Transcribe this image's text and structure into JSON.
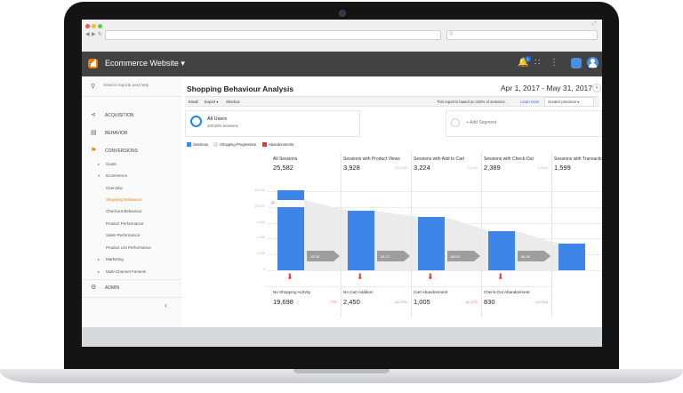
{
  "browser": {
    "url": "",
    "search": ""
  },
  "header": {
    "app_title": "Ecommerce Website",
    "notification_count": "1"
  },
  "sidebar": {
    "search_placeholder": "Search reports and help",
    "items": [
      {
        "label": "ACQUISITION"
      },
      {
        "label": "BEHAVIOR"
      },
      {
        "label": "CONVERSIONS"
      }
    ],
    "conversions_sub": {
      "goals": "Goals",
      "ecommerce": "Ecommerce",
      "ecom_items": [
        "Overview",
        "Shopping Behaviour",
        "Checkout Behaviour",
        "Product Performance",
        "Sales Performance",
        "Product List Performance"
      ],
      "marketing": "Marketing",
      "mcf": "Multi-Channel Funnels"
    },
    "admin": "ADMIN",
    "collapse_icon": "chevron-left-icon"
  },
  "report": {
    "title": "Shopping Behaviour Analysis",
    "date_range": "Apr 1, 2017 - May 31, 2017",
    "toolbar": {
      "email": "Email",
      "export": "Export",
      "shortcut": "Shortcut"
    },
    "sample_note": "This report is based on 100% of sessions.",
    "learn_more": "Learn more",
    "precision": "Greater precision",
    "segment": {
      "name": "All Users",
      "sub": "100.00% Sessions"
    },
    "add_segment": "+ Add Segment",
    "legend": [
      {
        "label": "Sessions",
        "color": "#3e85e8"
      },
      {
        "label": "Shopping Progression",
        "color": "#e0e0e0"
      },
      {
        "label": "Abandonments",
        "color": "#e53935"
      }
    ]
  },
  "chart_data": {
    "type": "bar",
    "title": "",
    "categories": [
      "All Sessions",
      "Sessions with Product Views",
      "Sessions with Add to Cart",
      "Sessions with Check-Out",
      "Sessions with Transactions"
    ],
    "values": [
      25582,
      3928,
      3224,
      2389,
      1599
    ],
    "percents": [
      "",
      "15.35%",
      "12.6%",
      "9.34%",
      "6.25%"
    ],
    "y_ticks": [
      "30,000",
      "20,000",
      "3,600",
      "2,400",
      "1,200",
      "0"
    ],
    "progression_pct": [
      "15.35",
      "36.71",
      "68.53",
      "66.36"
    ],
    "abandonments": [
      {
        "label": "No Shopping Activity",
        "value": "19,698",
        "pct": "77%"
      },
      {
        "label": "No Cart Addition",
        "value": "2,450",
        "pct": "62.37%"
      },
      {
        "label": "Cart Abandonment",
        "value": "1,005",
        "pct": "31.17%"
      },
      {
        "label": "Check-Out Abandonment",
        "value": "830",
        "pct": "34.74%"
      }
    ],
    "display_values": [
      "25,582",
      "3,928",
      "3,224",
      "2,389",
      "1,599"
    ]
  }
}
